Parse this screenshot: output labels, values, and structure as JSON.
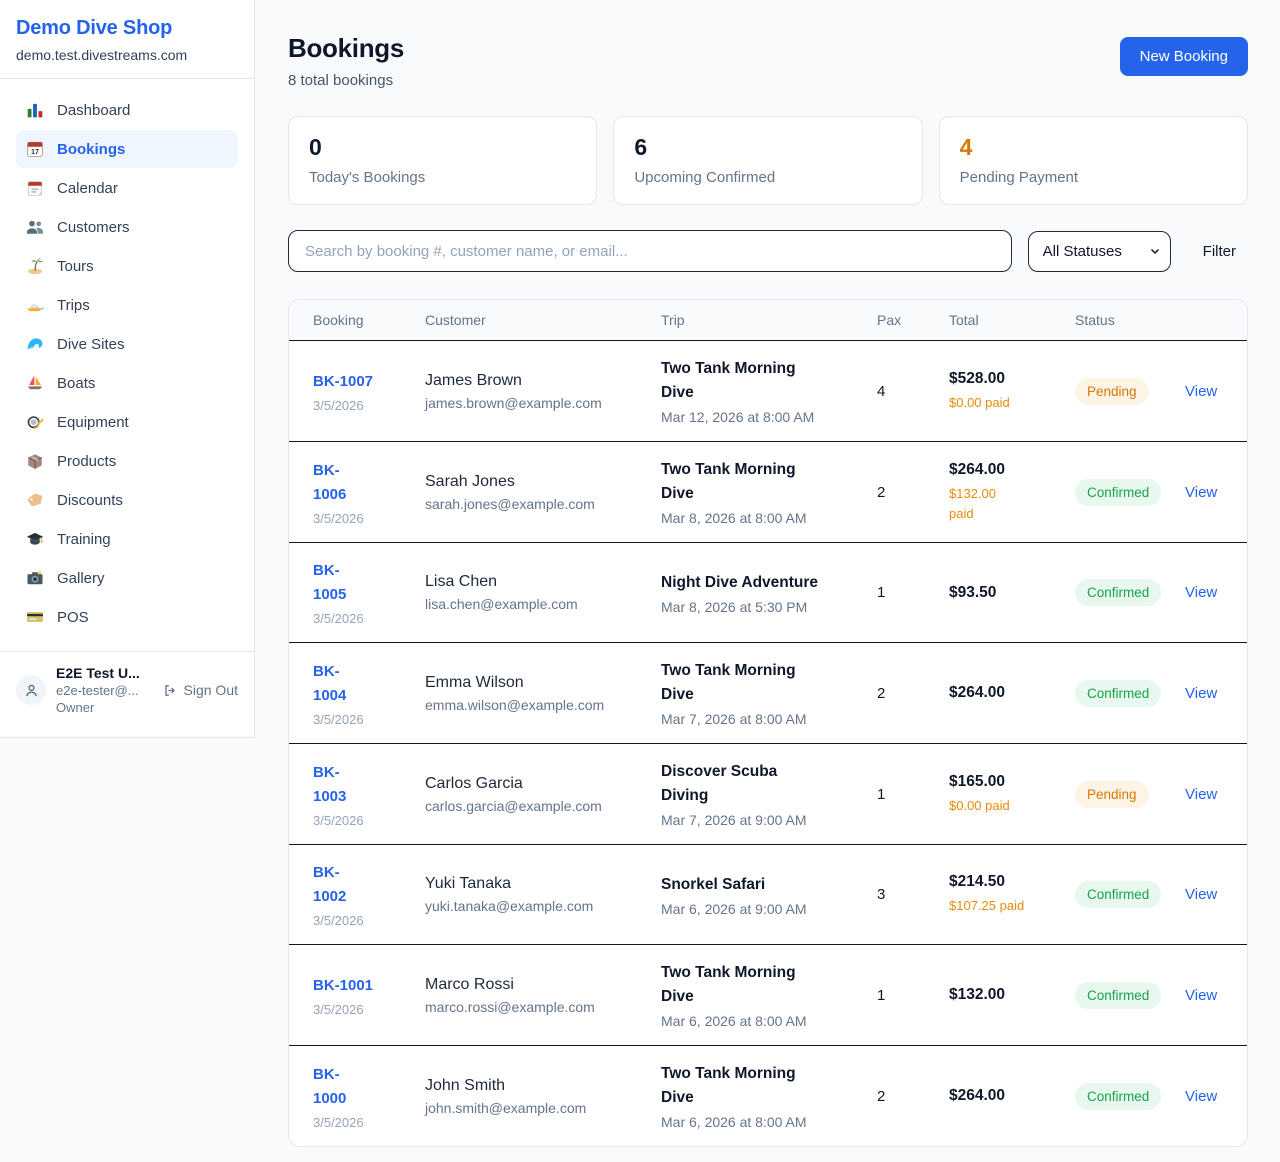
{
  "sidebar": {
    "shop_name": "Demo Dive Shop",
    "shop_domain": "demo.test.divestreams.com",
    "items": [
      {
        "label": "Dashboard",
        "icon": "bar-chart"
      },
      {
        "label": "Bookings",
        "icon": "calendar-17",
        "active": true
      },
      {
        "label": "Calendar",
        "icon": "calendar-pad"
      },
      {
        "label": "Customers",
        "icon": "people"
      },
      {
        "label": "Tours",
        "icon": "island"
      },
      {
        "label": "Trips",
        "icon": "speedboat"
      },
      {
        "label": "Dive Sites",
        "icon": "wave"
      },
      {
        "label": "Boats",
        "icon": "sailboat"
      },
      {
        "label": "Equipment",
        "icon": "diving-mask"
      },
      {
        "label": "Products",
        "icon": "box"
      },
      {
        "label": "Discounts",
        "icon": "tag"
      },
      {
        "label": "Training",
        "icon": "grad-cap"
      },
      {
        "label": "Gallery",
        "icon": "camera"
      },
      {
        "label": "POS",
        "icon": "credit-card"
      }
    ],
    "user": {
      "name": "E2E Test U...",
      "email": "e2e-tester@...",
      "role": "Owner",
      "sign_out_label": "Sign Out"
    }
  },
  "header": {
    "title": "Bookings",
    "subtitle": "8 total bookings",
    "new_booking_label": "New Booking"
  },
  "stats": [
    {
      "value": "0",
      "label": "Today's Bookings"
    },
    {
      "value": "6",
      "label": "Upcoming Confirmed"
    },
    {
      "value": "4",
      "label": "Pending Payment",
      "accent": "#d97706"
    }
  ],
  "filters": {
    "search_placeholder": "Search by booking #, customer name, or email...",
    "status_selected": "All Statuses",
    "filter_label": "Filter"
  },
  "table": {
    "columns": [
      "Booking",
      "Customer",
      "Trip",
      "Pax",
      "Total",
      "Status"
    ],
    "view_label": "View",
    "rows": [
      {
        "id": "BK-1007",
        "date": "3/5/2026",
        "customer": "James Brown",
        "email": "james.brown@example.com",
        "trip": "Two Tank Morning\nDive",
        "trip_datetime": "Mar 12, 2026 at 8:00 AM",
        "pax": "4",
        "total": "$528.00",
        "paid": "$0.00 paid",
        "status": "Pending"
      },
      {
        "id": "BK-\n1006",
        "date": "3/5/2026",
        "customer": "Sarah Jones",
        "email": "sarah.jones@example.com",
        "trip": "Two Tank Morning\nDive",
        "trip_datetime": "Mar 8, 2026 at 8:00 AM",
        "pax": "2",
        "total": "$264.00",
        "paid": "$132.00\npaid",
        "status": "Confirmed"
      },
      {
        "id": "BK-\n1005",
        "date": "3/5/2026",
        "customer": "Lisa Chen",
        "email": "lisa.chen@example.com",
        "trip": "Night Dive Adventure",
        "trip_datetime": "Mar 8, 2026 at 5:30 PM",
        "pax": "1",
        "total": "$93.50",
        "status": "Confirmed"
      },
      {
        "id": "BK-\n1004",
        "date": "3/5/2026",
        "customer": "Emma Wilson",
        "email": "emma.wilson@example.com",
        "trip": "Two Tank Morning\nDive",
        "trip_datetime": "Mar 7, 2026 at 8:00 AM",
        "pax": "2",
        "total": "$264.00",
        "status": "Confirmed"
      },
      {
        "id": "BK-\n1003",
        "date": "3/5/2026",
        "customer": "Carlos Garcia",
        "email": "carlos.garcia@example.com",
        "trip": "Discover Scuba\nDiving",
        "trip_datetime": "Mar 7, 2026 at 9:00 AM",
        "pax": "1",
        "total": "$165.00",
        "paid": "$0.00 paid",
        "status": "Pending"
      },
      {
        "id": "BK-\n1002",
        "date": "3/5/2026",
        "customer": "Yuki Tanaka",
        "email": "yuki.tanaka@example.com",
        "trip": "Snorkel Safari",
        "trip_datetime": "Mar 6, 2026 at 9:00 AM",
        "pax": "3",
        "total": "$214.50",
        "paid": "$107.25 paid",
        "status": "Confirmed"
      },
      {
        "id": "BK-1001",
        "date": "3/5/2026",
        "customer": "Marco Rossi",
        "email": "marco.rossi@example.com",
        "trip": "Two Tank Morning\nDive",
        "trip_datetime": "Mar 6, 2026 at 8:00 AM",
        "pax": "1",
        "total": "$132.00",
        "status": "Confirmed"
      },
      {
        "id": "BK-\n1000",
        "date": "3/5/2026",
        "customer": "John Smith",
        "email": "john.smith@example.com",
        "trip": "Two Tank Morning\nDive",
        "trip_datetime": "Mar 6, 2026 at 8:00 AM",
        "pax": "2",
        "total": "$264.00",
        "status": "Confirmed"
      }
    ]
  },
  "colors": {
    "brand_blue": "#2563eb",
    "pending_orange": "#d97706",
    "paid_orange": "#ea8a08",
    "confirmed_green": "#16a34a",
    "page_bg": "#f8fafc"
  }
}
